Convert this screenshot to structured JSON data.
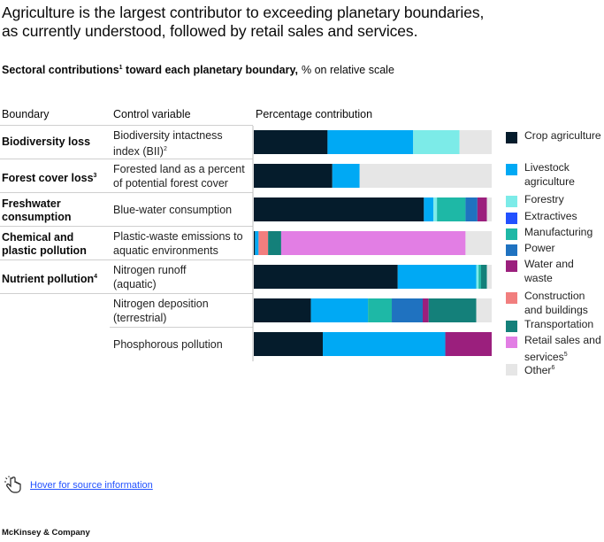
{
  "title": {
    "line1": "Agriculture is the largest contributor to exceeding planetary boundaries,",
    "line2": "as currently understood, followed by retail sales and services."
  },
  "subtitle": {
    "text": "Sectoral contributions",
    "sup": "1",
    "text2": " toward each planetary boundary,",
    "unit": "% on relative scale"
  },
  "headers": {
    "boundary": "Boundary",
    "control": "Control variable",
    "percentage": "Percentage contribution"
  },
  "rows": [
    {
      "boundary": "Biodiversity loss",
      "boundary_sup": "",
      "control": "Biodiversity intactness index (BII)",
      "control_sup": "2"
    },
    {
      "boundary": "Forest cover loss",
      "boundary_sup": "3",
      "control": "Forested land as a percent of potential forest cover",
      "control_sup": ""
    },
    {
      "boundary": "Freshwater consumption",
      "boundary_sup": "",
      "control": "Blue-water consumption",
      "control_sup": ""
    },
    {
      "boundary": "Chemical and plastic pollution",
      "boundary_sup": "",
      "control": "Plastic-waste emissions to aquatic environments",
      "control_sup": ""
    },
    {
      "boundary": "Nutrient pollution",
      "boundary_sup": "4",
      "control": "Nitrogen runoff (aquatic)",
      "control_sup": ""
    },
    {
      "boundary": "",
      "boundary_sup": "",
      "control": "Nitrogen deposition (terrestrial)",
      "control_sup": ""
    },
    {
      "boundary": "",
      "boundary_sup": "",
      "control": "Phosphorous pollution",
      "control_sup": ""
    }
  ],
  "legend": [
    {
      "label": "Crop agriculture",
      "sup": "",
      "color": "#051c2c"
    },
    {
      "label": "Livestock agriculture",
      "sup": "",
      "color": "#00a9f4"
    },
    {
      "label": "Forestry",
      "sup": "",
      "color": "#7cebe8"
    },
    {
      "label": "Extractives",
      "sup": "",
      "color": "#2251ff"
    },
    {
      "label": "Manufacturing",
      "sup": "",
      "color": "#1eb8a6"
    },
    {
      "label": "Power",
      "sup": "",
      "color": "#1f72c0"
    },
    {
      "label": "Water and waste",
      "sup": "",
      "color": "#9b1f7d"
    },
    {
      "label": "Construction and buildings",
      "sup": "",
      "color": "#f17e7e"
    },
    {
      "label": "Transportation",
      "sup": "",
      "color": "#14807a"
    },
    {
      "label": "Retail sales and services",
      "sup": "5",
      "color": "#e27ee4"
    },
    {
      "label": "Other",
      "sup": "6",
      "color": "#e6e6e6"
    }
  ],
  "chart_data": {
    "type": "bar",
    "orientation": "horizontal-stacked",
    "categories": [
      "Biodiversity intactness index (BII)",
      "Forested land as a percent of potential forest cover",
      "Blue-water consumption",
      "Plastic-waste emissions to aquatic environments",
      "Nitrogen runoff (aquatic)",
      "Nitrogen deposition (terrestrial)",
      "Phosphorous pollution"
    ],
    "xlim": [
      0,
      100
    ],
    "legend_position": "right",
    "series": [
      {
        "name": "Crop agriculture",
        "values": [
          31,
          33,
          71.5,
          0.5,
          60.5,
          24,
          29
        ]
      },
      {
        "name": "Livestock agriculture",
        "values": [
          36,
          11.5,
          4,
          1.5,
          33,
          24,
          51.5
        ]
      },
      {
        "name": "Forestry",
        "values": [
          19.5,
          0,
          1.5,
          0,
          1,
          0,
          0
        ]
      },
      {
        "name": "Extractives",
        "values": [
          0,
          0,
          0,
          0,
          0,
          0,
          0
        ]
      },
      {
        "name": "Manufacturing",
        "values": [
          0,
          0,
          12,
          0,
          1,
          10,
          0
        ]
      },
      {
        "name": "Power",
        "values": [
          0,
          0,
          5,
          0,
          0,
          13,
          0
        ]
      },
      {
        "name": "Water and waste",
        "values": [
          0,
          0,
          4,
          0,
          0,
          2.5,
          19.5
        ]
      },
      {
        "name": "Construction and buildings",
        "values": [
          0,
          0,
          0,
          4,
          0,
          0,
          0
        ]
      },
      {
        "name": "Transportation",
        "values": [
          0,
          0,
          0,
          5.5,
          2.5,
          20,
          0
        ]
      },
      {
        "name": "Retail sales and services",
        "values": [
          0,
          0,
          0,
          77.5,
          0,
          0,
          0
        ]
      },
      {
        "name": "Other",
        "values": [
          13.5,
          55.5,
          2,
          11,
          2,
          6.5,
          0
        ]
      }
    ]
  },
  "footer": {
    "hover_text": "Hover for source information",
    "brand": "McKinsey & Company"
  }
}
